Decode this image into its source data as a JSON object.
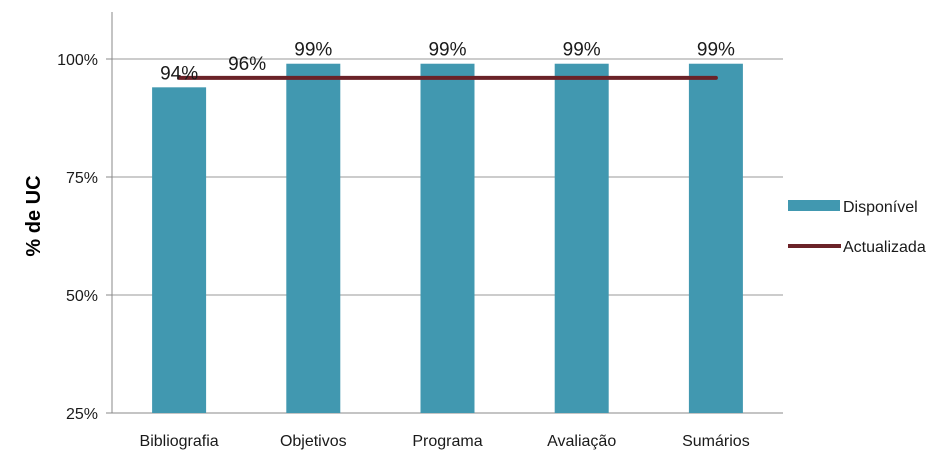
{
  "chart_data": {
    "type": "bar",
    "title": "",
    "xlabel": "",
    "ylabel": "% de UC",
    "categories": [
      "Bibliografia",
      "Objetivos",
      "Programa",
      "Avaliação",
      "Sumários"
    ],
    "series": [
      {
        "name": "Disponível",
        "kind": "bar",
        "color": "#4198B0",
        "values": [
          94,
          99,
          99,
          99,
          99
        ],
        "labels": [
          "94%",
          "99%",
          "99%",
          "99%",
          "99%"
        ]
      },
      {
        "name": "Actualizada",
        "kind": "line",
        "color": "#6B2228",
        "values": [
          96,
          96,
          96,
          96,
          96
        ],
        "labels": [
          "96%"
        ]
      }
    ],
    "ylim": [
      25,
      110
    ],
    "yticks": [
      25,
      50,
      75,
      100
    ],
    "ytick_labels": [
      "25%",
      "50%",
      "75%",
      "100%"
    ],
    "grid": true,
    "legend_position": "right"
  }
}
